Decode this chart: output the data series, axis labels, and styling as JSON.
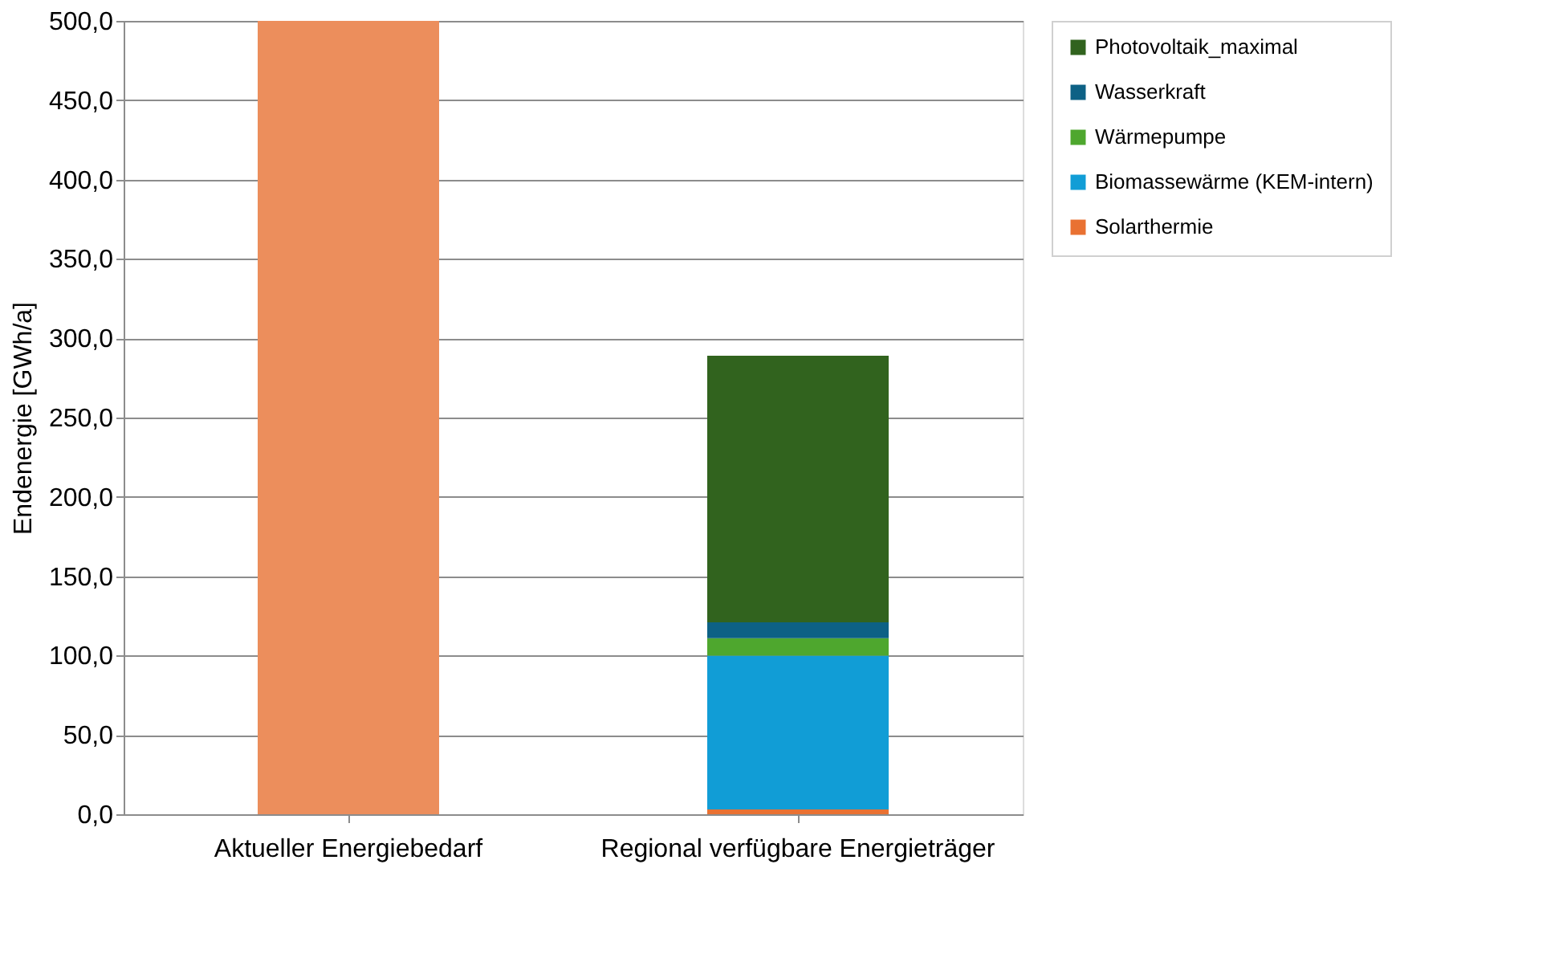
{
  "chart_data": {
    "type": "bar",
    "stacked": true,
    "ylabel": "Endenergie [GWh/a]",
    "categories": [
      "Aktueller Energiebedarf",
      "Regional verfügbare Energieträger"
    ],
    "series": [
      {
        "color": "#ec8e5c",
        "values": [
          500,
          null
        ]
      },
      {
        "name": "Solarthermie",
        "color": "#e97132",
        "values": [
          null,
          3
        ]
      },
      {
        "name": "Biomassewärme (KEM-intern)",
        "color": "#119dd6",
        "values": [
          null,
          97
        ]
      },
      {
        "name": "Wärmepumpe",
        "color": "#4ea72e",
        "values": [
          null,
          11
        ]
      },
      {
        "name": "Wasserkraft",
        "color": "#0d6185",
        "values": [
          null,
          10
        ]
      },
      {
        "name": "Photovoltaik_maximal",
        "color": "#31631e",
        "values": [
          null,
          168
        ]
      }
    ],
    "ylim": [
      0,
      500
    ],
    "yticks": [
      {
        "value": 0,
        "label": "0,0"
      },
      {
        "value": 50,
        "label": "50,0"
      },
      {
        "value": 100,
        "label": "100,0"
      },
      {
        "value": 150,
        "label": "150,0"
      },
      {
        "value": 200,
        "label": "200,0"
      },
      {
        "value": 250,
        "label": "250,0"
      },
      {
        "value": 300,
        "label": "300,0"
      },
      {
        "value": 350,
        "label": "350,0"
      },
      {
        "value": 400,
        "label": "400,0"
      },
      {
        "value": 450,
        "label": "450,0"
      },
      {
        "value": 500,
        "label": "500,0"
      }
    ],
    "grid": "y",
    "legend": "right"
  }
}
